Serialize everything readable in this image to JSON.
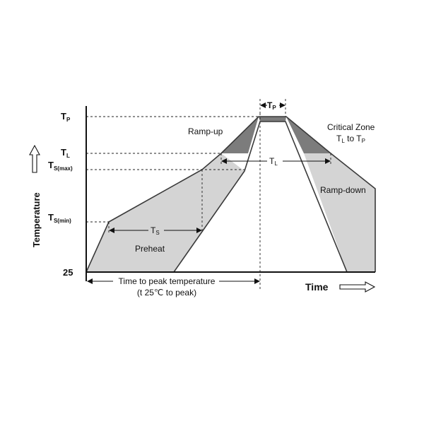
{
  "y_labels": {
    "tp": {
      "main": "T",
      "sub": "P"
    },
    "tl": {
      "main": "T",
      "sub": "L"
    },
    "ts_max": {
      "main": "T",
      "sub": "S(max)"
    },
    "ts_min": {
      "main": "T",
      "sub": "S(min)"
    },
    "base": "25"
  },
  "y_axis_title": "Temperature",
  "x_axis_title": "Time",
  "regions": {
    "ramp_up": "Ramp-up",
    "ramp_down": "Ramp-down",
    "preheat": "Preheat"
  },
  "critical_zone": {
    "title": "Critical Zone",
    "range_a": {
      "main": "T",
      "sub": "L"
    },
    "to": " to ",
    "range_b": {
      "main": "T",
      "sub": "P"
    }
  },
  "intervals": {
    "tp_dim": {
      "main": "T",
      "sub": "P"
    },
    "tl_dim": {
      "main": "T",
      "sub": "L"
    },
    "ts_dim": {
      "main": "T",
      "sub": "S"
    }
  },
  "time_to_peak": {
    "line1": "Time to peak temperature",
    "line2": "(t 25℃ to peak)"
  },
  "colors": {
    "light_fill": "#d4d4d4",
    "dark_fill": "#7c7c7c",
    "profile_edge": "#3a3a3a"
  }
}
